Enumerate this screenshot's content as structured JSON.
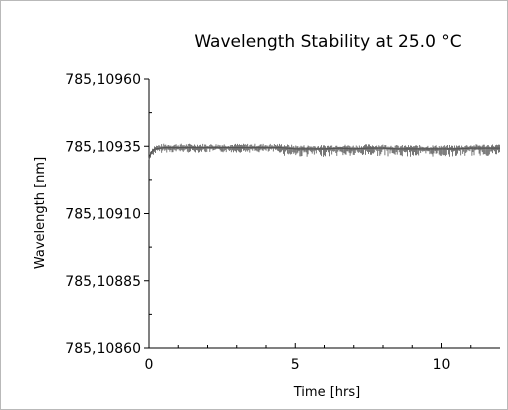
{
  "chart_data": {
    "type": "line",
    "title": "Wavelength Stability at 25.0 °C",
    "xlabel": "Time [hrs]",
    "ylabel": "Wavelength [nm]",
    "xlim": [
      0,
      12
    ],
    "ylim": [
      785.1086,
      785.1096
    ],
    "x_ticks": [
      0,
      5,
      10
    ],
    "x_tick_labels": [
      "0",
      "5",
      "10"
    ],
    "y_ticks": [
      785.1086,
      785.10885,
      785.1091,
      785.10935,
      785.1096
    ],
    "y_tick_labels": [
      "785,10860",
      "785,10885",
      "785,10910",
      "785,10935",
      "785,10960"
    ],
    "grid": false,
    "series": [
      {
        "color": "#555555",
        "x": [
          0,
          0.02,
          0.05,
          0.1,
          0.2,
          0.5,
          1,
          1.5,
          2,
          2.5,
          3,
          3.5,
          4,
          4.5,
          5,
          5.5,
          6,
          6.5,
          7,
          7.5,
          8,
          8.5,
          9,
          9.5,
          10,
          10.5,
          11,
          11.5,
          12
        ],
        "y": [
          785.1093,
          785.10931,
          785.10932,
          785.10933,
          785.10934,
          785.109345,
          785.109345,
          785.109345,
          785.109345,
          785.109345,
          785.109345,
          785.109345,
          785.109345,
          785.109345,
          785.10934,
          785.10934,
          785.10934,
          785.109343,
          785.10934,
          785.109343,
          785.109343,
          785.10934,
          785.10934,
          785.10934,
          785.10934,
          785.10934,
          785.109343,
          785.109343,
          785.109343
        ]
      }
    ]
  }
}
